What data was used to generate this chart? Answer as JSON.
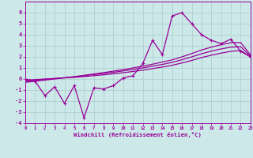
{
  "xlabel": "Windchill (Refroidissement éolien,°C)",
  "bg_color": "#cce8e8",
  "grid_color": "#aacccc",
  "line_color": "#990099",
  "x_data": [
    0,
    1,
    2,
    3,
    4,
    5,
    6,
    7,
    8,
    9,
    10,
    11,
    12,
    13,
    14,
    15,
    16,
    17,
    18,
    19,
    20,
    21,
    22,
    23
  ],
  "y_zigzag": [
    0.0,
    -0.2,
    -1.5,
    -0.7,
    -2.2,
    -0.6,
    -3.5,
    -0.8,
    -0.9,
    -0.6,
    0.1,
    0.3,
    1.4,
    3.5,
    2.2,
    5.7,
    6.0,
    5.0,
    4.0,
    3.5,
    3.2,
    3.6,
    2.5,
    2.0
  ],
  "y_line1": [
    -0.1,
    -0.05,
    0.0,
    0.05,
    0.1,
    0.15,
    0.22,
    0.3,
    0.38,
    0.47,
    0.57,
    0.68,
    0.8,
    0.94,
    1.08,
    1.24,
    1.45,
    1.68,
    1.94,
    2.15,
    2.34,
    2.5,
    2.58,
    2.0
  ],
  "y_line2": [
    -0.2,
    -0.12,
    -0.04,
    0.04,
    0.12,
    0.2,
    0.3,
    0.4,
    0.5,
    0.61,
    0.73,
    0.86,
    1.0,
    1.16,
    1.32,
    1.5,
    1.74,
    2.0,
    2.28,
    2.52,
    2.72,
    2.88,
    2.92,
    2.08
  ],
  "y_line3": [
    -0.3,
    -0.2,
    -0.1,
    0.0,
    0.1,
    0.21,
    0.33,
    0.45,
    0.58,
    0.71,
    0.85,
    1.0,
    1.16,
    1.34,
    1.53,
    1.73,
    2.0,
    2.3,
    2.62,
    2.88,
    3.1,
    3.28,
    3.3,
    2.18
  ],
  "ylim": [
    -4,
    7
  ],
  "xlim": [
    0,
    23
  ],
  "yticks": [
    -4,
    -3,
    -2,
    -1,
    0,
    1,
    2,
    3,
    4,
    5,
    6
  ],
  "xticks": [
    0,
    1,
    2,
    3,
    4,
    5,
    6,
    7,
    8,
    9,
    10,
    11,
    12,
    13,
    14,
    15,
    16,
    17,
    18,
    19,
    20,
    21,
    22,
    23
  ]
}
